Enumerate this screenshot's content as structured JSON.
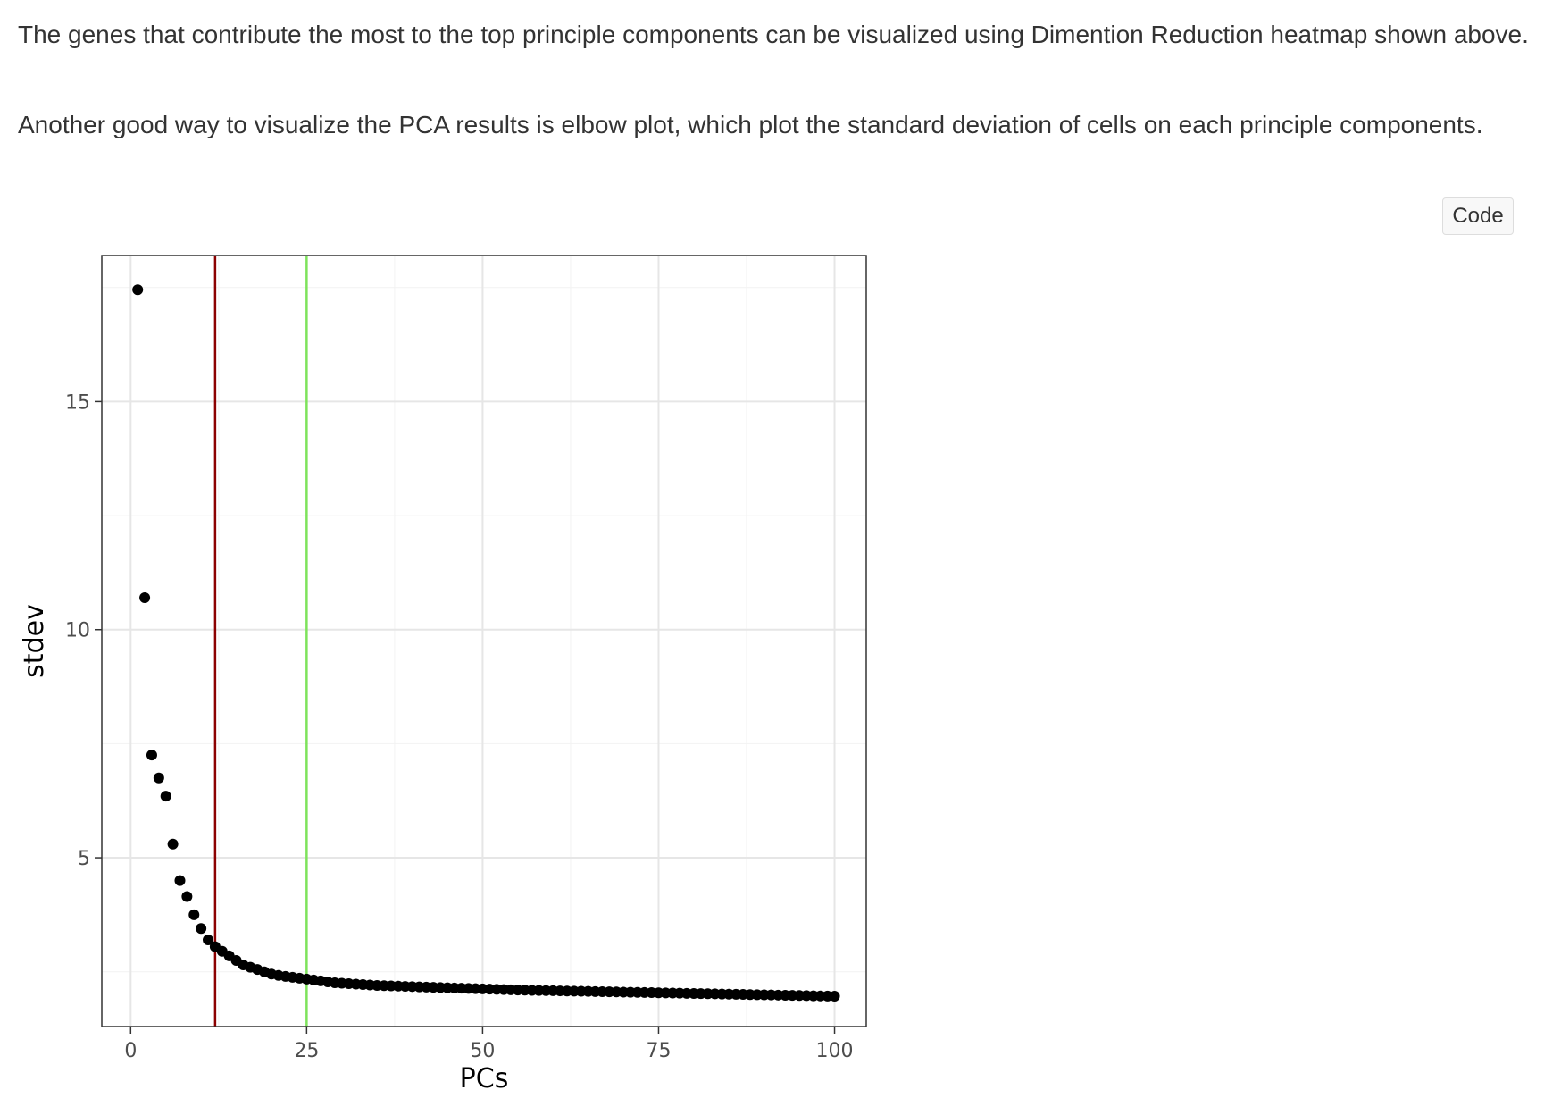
{
  "text": {
    "paragraph_1": "The genes that contribute the most to the top principle components can be visualized using Dimention Reduction heatmap shown above.",
    "paragraph_2": "Another good way to visualize the PCA results is elbow plot, which plot the standard deviation of cells on each principle components."
  },
  "toolbar": {
    "code_label": "Code"
  },
  "chart_data": {
    "type": "scatter",
    "xlabel": "PCs",
    "ylabel": "stdev",
    "xlim": [
      -4.1,
      104.5
    ],
    "ylim": [
      1.3,
      18.2
    ],
    "xticks": [
      0,
      25,
      50,
      75,
      100
    ],
    "xtick_labels": [
      "0",
      "25",
      "50",
      "75",
      "100"
    ],
    "yticks": [
      5,
      10,
      15
    ],
    "ytick_labels": [
      "5",
      "10",
      "15"
    ],
    "grid": true,
    "theme": "bw",
    "point_color": "#000000",
    "vlines": [
      {
        "x": 12,
        "color": "#8b0000"
      },
      {
        "x": 25,
        "color": "#7ee35b"
      }
    ],
    "x": [
      1,
      2,
      3,
      4,
      5,
      6,
      7,
      8,
      9,
      10,
      11,
      12,
      13,
      14,
      15,
      16,
      17,
      18,
      19,
      20,
      21,
      22,
      23,
      24,
      25,
      26,
      27,
      28,
      29,
      30,
      31,
      32,
      33,
      34,
      35,
      36,
      37,
      38,
      39,
      40,
      41,
      42,
      43,
      44,
      45,
      46,
      47,
      48,
      49,
      50,
      51,
      52,
      53,
      54,
      55,
      56,
      57,
      58,
      59,
      60,
      61,
      62,
      63,
      64,
      65,
      66,
      67,
      68,
      69,
      70,
      71,
      72,
      73,
      74,
      75,
      76,
      77,
      78,
      79,
      80,
      81,
      82,
      83,
      84,
      85,
      86,
      87,
      88,
      89,
      90,
      91,
      92,
      93,
      94,
      95,
      96,
      97,
      98,
      99,
      100
    ],
    "y": [
      17.45,
      10.7,
      7.25,
      6.75,
      6.35,
      5.3,
      4.5,
      4.15,
      3.75,
      3.45,
      3.2,
      3.05,
      2.95,
      2.85,
      2.75,
      2.65,
      2.6,
      2.55,
      2.5,
      2.45,
      2.42,
      2.4,
      2.38,
      2.36,
      2.34,
      2.32,
      2.3,
      2.28,
      2.26,
      2.25,
      2.24,
      2.23,
      2.22,
      2.21,
      2.2,
      2.195,
      2.19,
      2.185,
      2.18,
      2.175,
      2.17,
      2.165,
      2.16,
      2.155,
      2.15,
      2.145,
      2.14,
      2.135,
      2.13,
      2.125,
      2.12,
      2.115,
      2.11,
      2.105,
      2.1,
      2.097,
      2.094,
      2.091,
      2.088,
      2.085,
      2.082,
      2.079,
      2.076,
      2.073,
      2.07,
      2.067,
      2.064,
      2.061,
      2.058,
      2.055,
      2.052,
      2.049,
      2.046,
      2.043,
      2.04,
      2.037,
      2.034,
      2.031,
      2.028,
      2.025,
      2.022,
      2.019,
      2.016,
      2.013,
      2.01,
      2.007,
      2.004,
      2.001,
      1.998,
      1.995,
      1.992,
      1.989,
      1.986,
      1.983,
      1.98,
      1.977,
      1.974,
      1.971,
      1.968,
      1.965
    ]
  }
}
